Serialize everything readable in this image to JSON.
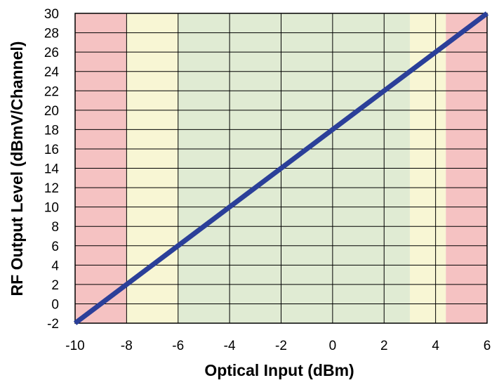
{
  "chart_data": {
    "type": "line",
    "xlabel": "Optical Input (dBm)",
    "ylabel": "RF Output Level (dBmV/Channel)",
    "xlim": [
      -10,
      6
    ],
    "ylim": [
      -2,
      30
    ],
    "x_ticks": [
      -10,
      -8,
      -6,
      -4,
      -2,
      0,
      2,
      4,
      6
    ],
    "y_ticks": [
      -2,
      0,
      2,
      4,
      6,
      8,
      10,
      12,
      14,
      16,
      18,
      20,
      22,
      24,
      26,
      28,
      30
    ],
    "x_gridlines": [
      -10,
      -8,
      -6,
      -4,
      -2,
      0,
      2,
      4,
      6
    ],
    "y_gridlines": [
      -2,
      0,
      2,
      4,
      6,
      8,
      10,
      12,
      14,
      16,
      18,
      20,
      22,
      24,
      26,
      28,
      30
    ],
    "grid": true,
    "regions": [
      {
        "from": -10,
        "to": -8,
        "color": "#f5c2c2"
      },
      {
        "from": -8,
        "to": -6,
        "color": "#f8f6d4"
      },
      {
        "from": -6,
        "to": 3,
        "color": "#e0ebd3"
      },
      {
        "from": 3,
        "to": 4.4,
        "color": "#f8f6d4"
      },
      {
        "from": 4.4,
        "to": 6,
        "color": "#f5c2c2"
      }
    ],
    "series": [
      {
        "color": "#2b3f99",
        "points": [
          {
            "x": -10,
            "y": -2
          },
          {
            "x": 6,
            "y": 30
          }
        ]
      }
    ]
  }
}
